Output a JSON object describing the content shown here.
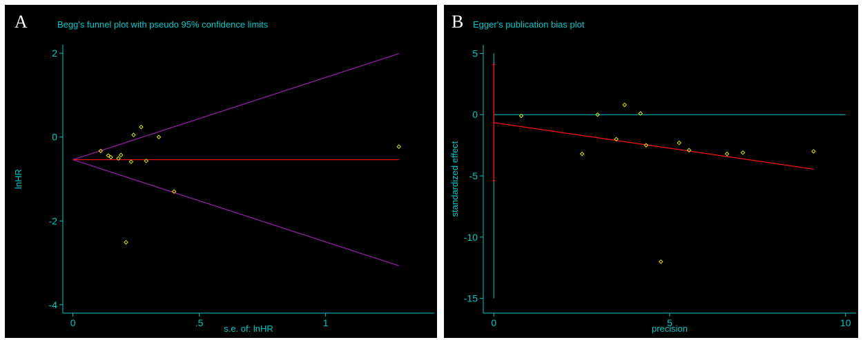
{
  "colors": {
    "background": "#000000",
    "axis": "#00c8c8",
    "points": "#e0e000",
    "fit_line": "#ff1010",
    "confidence_limits": "#9b1fb0",
    "panel_letter": "#ffffff"
  },
  "chart_data": [
    {
      "panel": "A",
      "type": "scatter",
      "title": "Begg's funnel plot with pseudo 95% confidence limits",
      "xlabel": "s.e. of: lnHR",
      "ylabel": "lnHR",
      "xlim": [
        -0.04,
        1.43
      ],
      "ylim": [
        -4.2,
        2.2
      ],
      "x_ticks": [
        0,
        0.5,
        1
      ],
      "x_tick_labels": [
        "0",
        ".5",
        "1"
      ],
      "y_ticks": [
        2,
        0,
        -2,
        -4
      ],
      "y_tick_labels": [
        "2",
        "0",
        "-2",
        "-4"
      ],
      "grid": false,
      "points": [
        {
          "x": 0.11,
          "y": -0.33
        },
        {
          "x": 0.14,
          "y": -0.44
        },
        {
          "x": 0.15,
          "y": -0.48
        },
        {
          "x": 0.18,
          "y": -0.51
        },
        {
          "x": 0.19,
          "y": -0.43
        },
        {
          "x": 0.21,
          "y": -2.51
        },
        {
          "x": 0.23,
          "y": -0.59
        },
        {
          "x": 0.24,
          "y": 0.05
        },
        {
          "x": 0.27,
          "y": 0.24
        },
        {
          "x": 0.29,
          "y": -0.57
        },
        {
          "x": 0.34,
          "y": 0.0
        },
        {
          "x": 0.4,
          "y": -1.3
        },
        {
          "x": 1.29,
          "y": -0.23
        }
      ],
      "pooled_estimate": -0.54,
      "se_max": 1.29,
      "limit_upper_end": 1.99,
      "limit_lower_end": -3.07
    },
    {
      "panel": "B",
      "type": "scatter",
      "title": "Egger's publication bias plot",
      "xlabel": "precision",
      "ylabel": "standardized effect",
      "xlim": [
        -0.3,
        10.3
      ],
      "ylim": [
        -16.2,
        5.7
      ],
      "x_ticks": [
        0,
        5,
        10
      ],
      "x_tick_labels": [
        "0",
        "5",
        "10"
      ],
      "y_ticks": [
        5,
        0,
        -5,
        -10,
        -15
      ],
      "y_tick_labels": [
        "5",
        "0",
        "-5",
        "-10",
        "-15"
      ],
      "grid": false,
      "points": [
        {
          "x": 0.78,
          "y": -0.1
        },
        {
          "x": 2.51,
          "y": -3.2
        },
        {
          "x": 2.95,
          "y": 0.0
        },
        {
          "x": 3.48,
          "y": -2.0
        },
        {
          "x": 3.72,
          "y": 0.8
        },
        {
          "x": 4.17,
          "y": 0.1
        },
        {
          "x": 4.33,
          "y": -2.5
        },
        {
          "x": 4.75,
          "y": -12.0
        },
        {
          "x": 5.27,
          "y": -2.3
        },
        {
          "x": 5.55,
          "y": -2.9
        },
        {
          "x": 6.63,
          "y": -3.2
        },
        {
          "x": 7.08,
          "y": -3.1
        },
        {
          "x": 9.09,
          "y": -3.0
        }
      ],
      "regression": {
        "x_start": 0,
        "y_start": -0.65,
        "x_end": 9.09,
        "y_end": -4.45
      },
      "intercept_ci": [
        -5.4,
        4.1
      ],
      "reference_y": 0,
      "vertical_axis_range": [
        -15,
        5
      ]
    }
  ]
}
